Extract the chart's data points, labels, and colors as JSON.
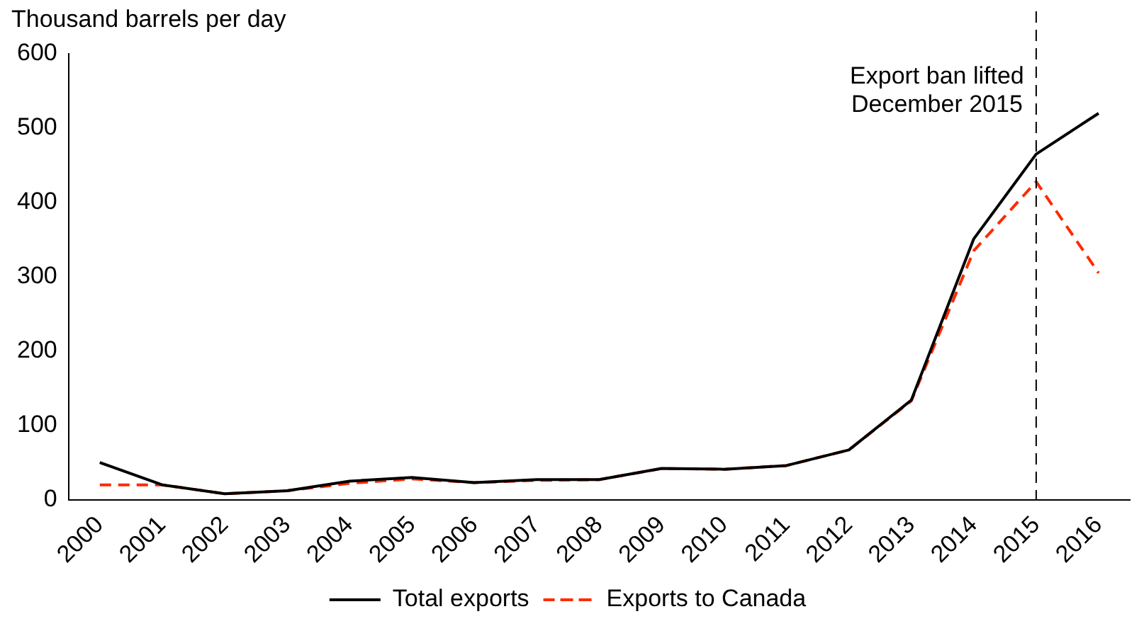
{
  "chart_data": {
    "type": "line",
    "ylabel": "Thousand barrels per day",
    "categories": [
      "2000",
      "2001",
      "2002",
      "2003",
      "2004",
      "2005",
      "2006",
      "2007",
      "2008",
      "2009",
      "2010",
      "2011",
      "2012",
      "2013",
      "2014",
      "2015",
      "2016"
    ],
    "series": [
      {
        "name": "Total exports",
        "color": "#000000",
        "line_style": "solid",
        "values": [
          50,
          20,
          8,
          12,
          25,
          30,
          23,
          27,
          27,
          42,
          41,
          46,
          67,
          134,
          351,
          465,
          520
        ]
      },
      {
        "name": "Exports to Canada",
        "color": "#ff2a00",
        "line_style": "dashed",
        "values": [
          20,
          20,
          8,
          12,
          22,
          28,
          23,
          26,
          27,
          42,
          41,
          46,
          67,
          133,
          335,
          428,
          305
        ]
      }
    ],
    "ylim": [
      0,
      600
    ],
    "yticks": [
      0,
      100,
      200,
      300,
      400,
      500,
      600
    ],
    "grid": false,
    "legend": "bottom",
    "marker": "none",
    "ref_lines": [
      {
        "axis": "x",
        "value": "2015",
        "label": "Export ban lifted\nDecember 2015",
        "color": "#000000",
        "line_style": "dashed"
      }
    ]
  }
}
